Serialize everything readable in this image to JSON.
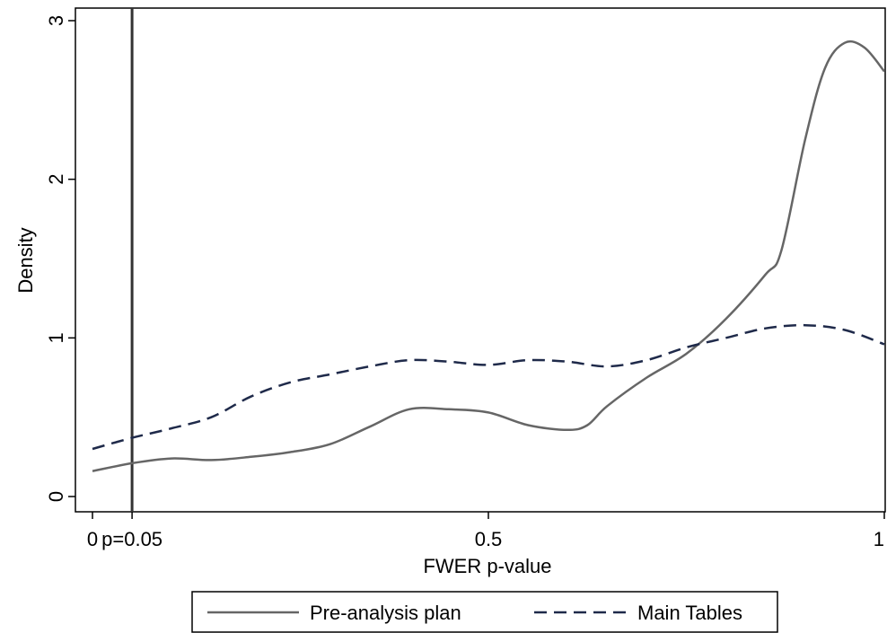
{
  "chart_data": {
    "type": "line",
    "title": "",
    "xlabel": "FWER p-value",
    "ylabel": "Density",
    "xlim": [
      0,
      1
    ],
    "ylim": [
      0,
      3
    ],
    "x_ticks": [
      {
        "value": 0,
        "label": "0"
      },
      {
        "value": 0.5,
        "label": "0.5"
      },
      {
        "value": 1,
        "label": "1"
      }
    ],
    "y_ticks": [
      {
        "value": 0,
        "label": "0"
      },
      {
        "value": 1,
        "label": "1"
      },
      {
        "value": 2,
        "label": "2"
      },
      {
        "value": 3,
        "label": "3"
      }
    ],
    "reference_line": {
      "x": 0.05,
      "label": "p=0.05",
      "color": "#333333"
    },
    "grid": false,
    "legend_position": "bottom",
    "series": [
      {
        "name": "Pre-analysis plan",
        "style": "solid",
        "color": "#666666",
        "x": [
          0,
          0.05,
          0.1,
          0.15,
          0.2,
          0.25,
          0.3,
          0.35,
          0.4,
          0.45,
          0.5,
          0.55,
          0.6,
          0.625,
          0.65,
          0.7,
          0.75,
          0.8,
          0.85,
          0.87,
          0.9,
          0.925,
          0.95,
          0.975,
          1.0
        ],
        "y": [
          0.16,
          0.21,
          0.24,
          0.23,
          0.25,
          0.28,
          0.33,
          0.44,
          0.55,
          0.55,
          0.53,
          0.45,
          0.42,
          0.45,
          0.57,
          0.75,
          0.9,
          1.12,
          1.4,
          1.55,
          2.25,
          2.7,
          2.86,
          2.83,
          2.68
        ]
      },
      {
        "name": "Main Tables",
        "style": "dashed",
        "color": "#1f2a4a",
        "x": [
          0,
          0.05,
          0.1,
          0.15,
          0.2,
          0.25,
          0.3,
          0.35,
          0.4,
          0.45,
          0.5,
          0.55,
          0.6,
          0.65,
          0.7,
          0.75,
          0.8,
          0.85,
          0.9,
          0.95,
          1.0
        ],
        "y": [
          0.3,
          0.37,
          0.43,
          0.5,
          0.63,
          0.72,
          0.77,
          0.82,
          0.86,
          0.85,
          0.83,
          0.86,
          0.85,
          0.82,
          0.86,
          0.94,
          1.0,
          1.06,
          1.08,
          1.05,
          0.96
        ]
      }
    ]
  }
}
